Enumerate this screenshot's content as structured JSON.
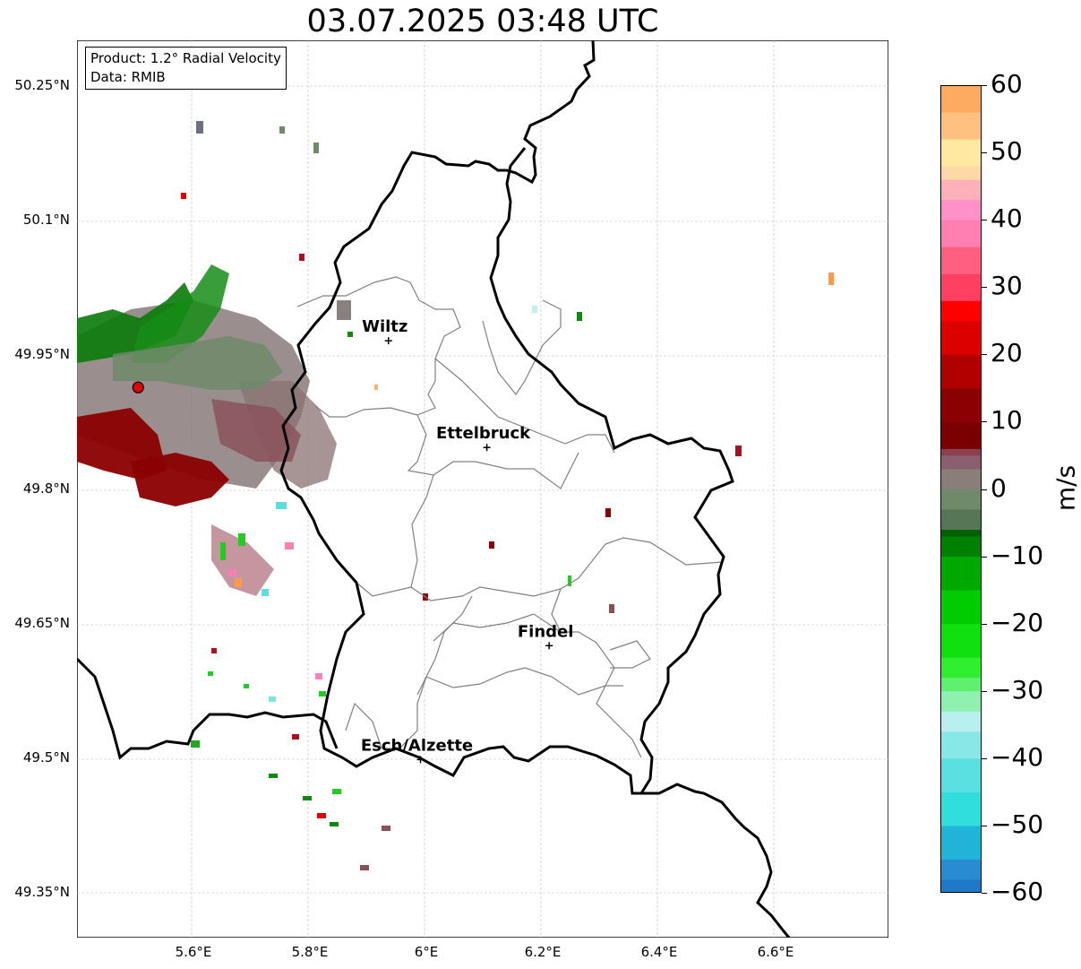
{
  "title": "03.07.2025 03:48 UTC",
  "info": {
    "product": "Product: 1.2° Radial Velocity",
    "data": "Data: RMIB"
  },
  "lat_ticks": [
    "50.25°N",
    "50.1°N",
    "49.95°N",
    "49.8°N",
    "49.65°N",
    "49.5°N",
    "49.35°N"
  ],
  "lon_ticks": [
    "5.6°E",
    "5.8°E",
    "6°E",
    "6.2°E",
    "6.4°E",
    "6.6°E"
  ],
  "colorbar": {
    "unit": "m/s",
    "ticks": [
      "60",
      "50",
      "40",
      "30",
      "20",
      "10",
      "0",
      "−10",
      "−20",
      "−30",
      "−40",
      "−50",
      "−60"
    ],
    "range": [
      -60,
      60
    ]
  },
  "cities": [
    {
      "name": "Wiltz",
      "lon": 5.935,
      "lat": 49.966
    },
    {
      "name": "Ettelbruck",
      "lon": 6.104,
      "lat": 49.847
    },
    {
      "name": "Findel",
      "lon": 6.211,
      "lat": 49.626
    },
    {
      "name": "Esch/Alzette",
      "lon": 5.99,
      "lat": 49.499
    }
  ],
  "radar_site": {
    "lon": 5.505,
    "lat": 49.914
  },
  "colors": {
    "radar_marker": "#dd0000",
    "border": "#000000",
    "canton": "#808080"
  }
}
